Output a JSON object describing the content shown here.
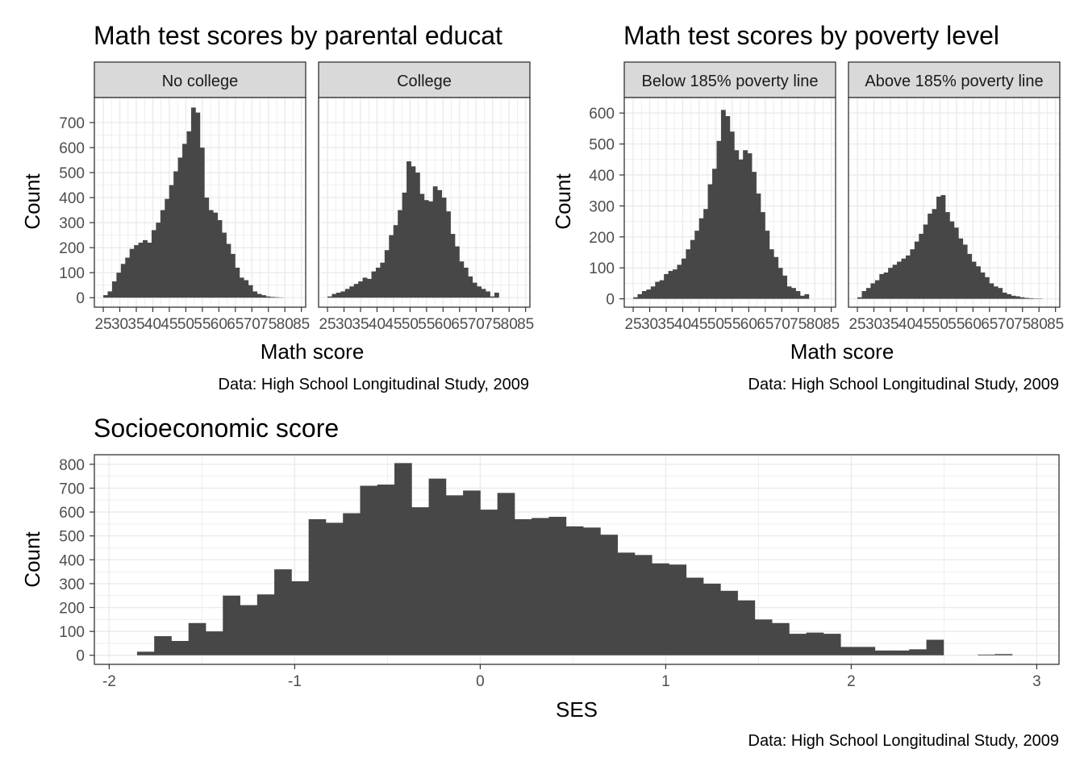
{
  "chart_data": [
    {
      "id": "parental",
      "type": "bar",
      "title": "Math test scores by parental educat",
      "xlabel": "Math score",
      "ylabel": "Count",
      "caption": "Data: High School Longitudinal Study, 2009",
      "x_ticks": [
        "25",
        "30",
        "35",
        "40",
        "45",
        "50",
        "55",
        "60",
        "65",
        "70",
        "75",
        "80",
        "85"
      ],
      "y_ticks": [
        "0",
        "100",
        "200",
        "300",
        "400",
        "500",
        "600",
        "700"
      ],
      "xlim": [
        22.3,
        86.3
      ],
      "ylim": [
        -38,
        800
      ],
      "grid": true,
      "panels": [
        {
          "label": "No college",
          "bin_start": 25,
          "bin_width": 1.33,
          "values": [
            10,
            25,
            65,
            100,
            135,
            160,
            195,
            210,
            220,
            230,
            220,
            270,
            300,
            350,
            395,
            450,
            505,
            560,
            615,
            665,
            760,
            740,
            600,
            400,
            350,
            340,
            310,
            260,
            215,
            175,
            120,
            80,
            70,
            50,
            25,
            15,
            10,
            5,
            3,
            2,
            1,
            0,
            0
          ]
        },
        {
          "label": "College",
          "bin_start": 25,
          "bin_width": 1.33,
          "values": [
            5,
            15,
            20,
            25,
            35,
            45,
            55,
            65,
            80,
            75,
            105,
            120,
            140,
            190,
            250,
            290,
            350,
            420,
            545,
            525,
            500,
            415,
            390,
            385,
            445,
            430,
            400,
            345,
            255,
            205,
            145,
            120,
            85,
            60,
            45,
            35,
            25,
            5,
            20
          ]
        }
      ]
    },
    {
      "id": "poverty",
      "type": "bar",
      "title": "Math test scores by poverty level",
      "xlabel": "Math score",
      "ylabel": "Count",
      "caption": "Data: High School Longitudinal Study, 2009",
      "x_ticks": [
        "25",
        "30",
        "35",
        "40",
        "45",
        "50",
        "55",
        "60",
        "65",
        "70",
        "75",
        "80",
        "85"
      ],
      "y_ticks": [
        "0",
        "100",
        "200",
        "300",
        "400",
        "500",
        "600"
      ],
      "xlim": [
        22.3,
        86.3
      ],
      "ylim": [
        -27,
        650
      ],
      "grid": true,
      "panels": [
        {
          "label": "Below 185% poverty line",
          "bin_start": 25,
          "bin_width": 1.33,
          "values": [
            5,
            15,
            25,
            30,
            40,
            55,
            60,
            80,
            90,
            95,
            110,
            130,
            160,
            190,
            220,
            260,
            290,
            370,
            420,
            510,
            610,
            590,
            540,
            480,
            450,
            480,
            470,
            410,
            340,
            280,
            220,
            160,
            135,
            100,
            75,
            40,
            35,
            25,
            10,
            15
          ]
        },
        {
          "label": "Above 185% poverty line",
          "bin_start": 25,
          "bin_width": 1.33,
          "values": [
            5,
            25,
            35,
            50,
            60,
            80,
            85,
            100,
            110,
            120,
            130,
            140,
            160,
            185,
            210,
            240,
            275,
            290,
            330,
            335,
            280,
            250,
            230,
            195,
            175,
            145,
            120,
            105,
            85,
            70,
            50,
            40,
            35,
            20,
            15,
            10,
            8,
            5,
            3,
            2,
            1,
            1,
            0
          ]
        }
      ]
    },
    {
      "id": "ses",
      "type": "bar",
      "title": "Socioeconomic score",
      "xlabel": "SES",
      "ylabel": "Count",
      "caption": "Data: High School Longitudinal Study, 2009",
      "x_ticks": [
        "-2",
        "-1",
        "0",
        "1",
        "2",
        "3"
      ],
      "y_ticks": [
        "0",
        "100",
        "200",
        "300",
        "400",
        "500",
        "600",
        "700",
        "800"
      ],
      "xlim": [
        -2.08,
        3.12
      ],
      "ylim": [
        -38,
        840
      ],
      "grid": true,
      "bin_start": -1.85,
      "bin_width": 0.0925,
      "values": [
        15,
        80,
        60,
        135,
        100,
        250,
        210,
        255,
        360,
        310,
        570,
        555,
        595,
        710,
        715,
        805,
        620,
        740,
        670,
        690,
        610,
        680,
        570,
        575,
        580,
        540,
        535,
        505,
        430,
        420,
        385,
        380,
        325,
        300,
        270,
        230,
        150,
        135,
        90,
        95,
        90,
        35,
        35,
        20,
        20,
        25,
        65,
        0,
        0,
        3,
        5,
        0
      ]
    }
  ]
}
